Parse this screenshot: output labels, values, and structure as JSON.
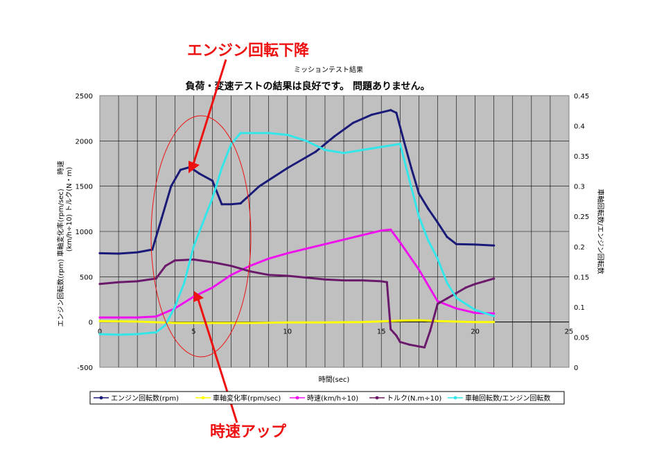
{
  "chart_data": {
    "type": "line",
    "supertitle": "ミッションテスト結果",
    "title": "負荷・変速テストの結果は良好です。 問題ありません。",
    "xlabel": "時間(sec)",
    "ylabel_left_lines": [
      "時速",
      "(km/h÷10) トルク(N・m)",
      "エンジン回転数(rpm) 車軸変化率(rpm/sec)"
    ],
    "ylabel_right": "車軸回転数/エンジン回転数",
    "xlim": [
      0,
      25
    ],
    "ylim_left": [
      -500,
      2500
    ],
    "ylim_right": [
      0,
      0.45
    ],
    "x_ticks": [
      "0",
      "5",
      "10",
      "15",
      "20",
      "25"
    ],
    "y_left_ticks": [
      "-500",
      "0",
      "500",
      "1000",
      "1500",
      "2000",
      "2500"
    ],
    "y_right_ticks": [
      "0",
      "0.05",
      "0.1",
      "0.15",
      "0.2",
      "0.25",
      "0.3",
      "0.35",
      "0.4",
      "0.45"
    ],
    "grid": true,
    "legend_placement": "bottom",
    "series": [
      {
        "name": "エンジン回転数(rpm)",
        "axis": "left",
        "color": "#1a1a78",
        "marker": "dot",
        "x": [
          0,
          1,
          2,
          2.8,
          3.3,
          3.8,
          4.3,
          4.8,
          5.3,
          6,
          6.5,
          7,
          7.5,
          8.5,
          10,
          11.5,
          12.5,
          13.5,
          14.5,
          15.5,
          15.8,
          16.2,
          16.6,
          17,
          17.5,
          18,
          18.5,
          19,
          20,
          21
        ],
        "y": [
          760,
          755,
          770,
          800,
          1150,
          1500,
          1680,
          1710,
          1640,
          1560,
          1300,
          1300,
          1310,
          1500,
          1700,
          1880,
          2050,
          2200,
          2290,
          2340,
          2310,
          2000,
          1700,
          1420,
          1250,
          1100,
          940,
          860,
          855,
          845
        ]
      },
      {
        "name": "車軸変化率(rpm/sec)",
        "axis": "left",
        "color": "#ffff00",
        "marker": "dot",
        "x": [
          0,
          2,
          4,
          6,
          8,
          10,
          12,
          14,
          16,
          17,
          18,
          19,
          20,
          21
        ],
        "y": [
          10,
          5,
          -10,
          -10,
          -10,
          -5,
          -5,
          0,
          15,
          20,
          10,
          5,
          0,
          0
        ]
      },
      {
        "name": "時速(km/h÷10)",
        "axis": "left",
        "color": "#ee11ee",
        "marker": "dot",
        "x": [
          0,
          1,
          2,
          3,
          4,
          5,
          6,
          7,
          8,
          9,
          10,
          11,
          12,
          13,
          14,
          15,
          15.5,
          16,
          17,
          18,
          19,
          20,
          21
        ],
        "y": [
          50,
          50,
          50,
          60,
          150,
          280,
          380,
          520,
          620,
          700,
          760,
          810,
          860,
          910,
          960,
          1010,
          1020,
          880,
          580,
          230,
          150,
          100,
          95
        ]
      },
      {
        "name": "トルク(N.m÷10)",
        "axis": "left",
        "color": "#6b1a6b",
        "marker": "dot",
        "x": [
          0,
          1,
          2,
          3,
          3.5,
          4,
          5,
          6,
          7,
          8,
          9,
          10,
          11,
          12,
          13,
          14,
          15,
          15.3,
          15.5,
          15.8,
          16,
          16.5,
          17,
          17.3,
          17.6,
          18,
          18.5,
          19,
          19.5,
          20,
          20.5,
          21
        ],
        "y": [
          420,
          440,
          450,
          480,
          620,
          680,
          690,
          660,
          620,
          560,
          520,
          510,
          490,
          470,
          460,
          460,
          450,
          440,
          -80,
          -150,
          -220,
          -250,
          -270,
          -280,
          -100,
          200,
          260,
          320,
          380,
          420,
          450,
          480
        ]
      },
      {
        "name": "車軸回転数/エンジン回転数",
        "axis": "right",
        "color": "#33e6ea",
        "marker": "dot",
        "x": [
          0,
          1,
          2,
          3,
          3.5,
          4,
          4.5,
          5,
          5.5,
          6,
          6.5,
          7,
          7.5,
          8,
          9,
          10,
          11,
          12,
          13,
          14,
          15,
          16,
          16.5,
          17,
          17.5,
          18,
          18.5,
          19,
          20,
          21
        ],
        "y": [
          0.055,
          0.054,
          0.055,
          0.058,
          0.07,
          0.1,
          0.14,
          0.2,
          0.24,
          0.28,
          0.33,
          0.37,
          0.388,
          0.388,
          0.388,
          0.385,
          0.375,
          0.36,
          0.355,
          0.36,
          0.365,
          0.37,
          0.31,
          0.25,
          0.21,
          0.18,
          0.14,
          0.115,
          0.095,
          0.085
        ]
      }
    ],
    "annotations": {
      "top_text": "エンジン回転下降",
      "bottom_text": "時速アップ"
    }
  }
}
